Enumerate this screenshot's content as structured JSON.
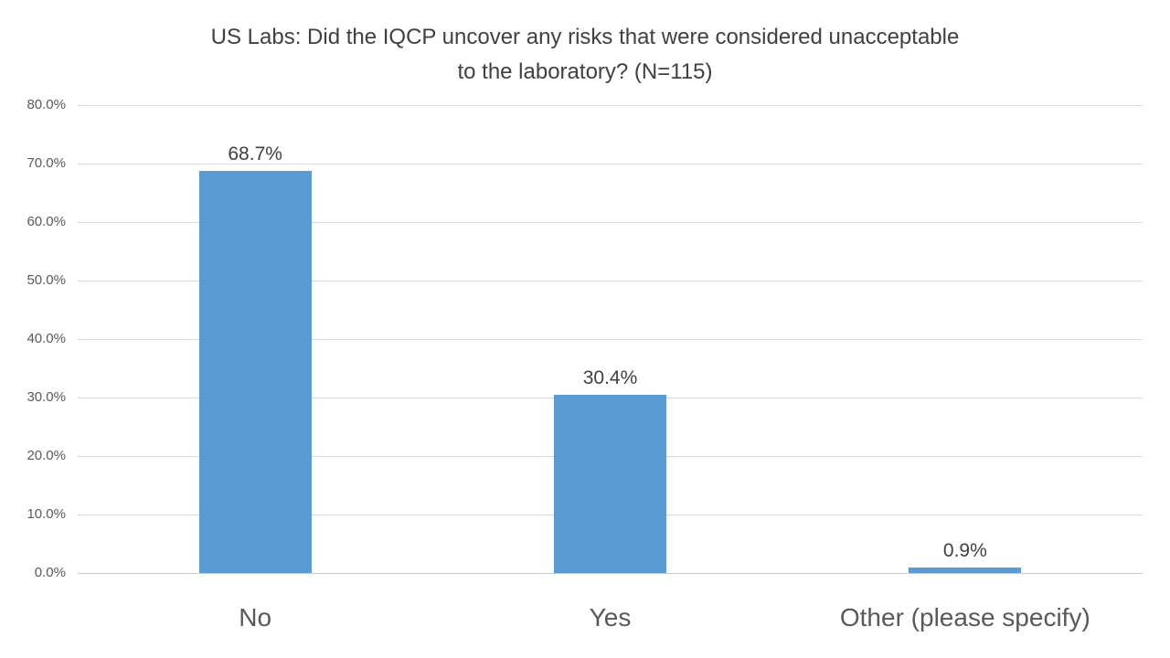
{
  "chart_data": {
    "type": "bar",
    "title": "US Labs: Did the IQCP uncover any risks that were considered unacceptable to the laboratory? (N=115)",
    "title_lines": [
      "US Labs: Did the IQCP uncover any risks that were considered unacceptable",
      "to the laboratory? (N=115)"
    ],
    "categories": [
      "No",
      "Yes",
      "Other (please specify)"
    ],
    "values": [
      68.7,
      30.4,
      0.9
    ],
    "data_labels": [
      "68.7%",
      "30.4%",
      "0.9%"
    ],
    "y_ticks": [
      "80.0%",
      "70.0%",
      "60.0%",
      "50.0%",
      "40.0%",
      "30.0%",
      "20.0%",
      "10.0%",
      "0.0%"
    ],
    "y_tick_values": [
      80,
      70,
      60,
      50,
      40,
      30,
      20,
      10,
      0
    ],
    "ylim": [
      0,
      80
    ],
    "grid": true,
    "legend": "none",
    "xlabel": "",
    "ylabel": "",
    "colors": {
      "bar": "#5b9bd5",
      "gridline": "#d9d9d9",
      "axis_line": "#c8c8c8",
      "title_text": "#404040",
      "value_label_text": "#404040",
      "tick_text": "#595959",
      "category_text": "#595959",
      "background": "#ffffff"
    }
  }
}
